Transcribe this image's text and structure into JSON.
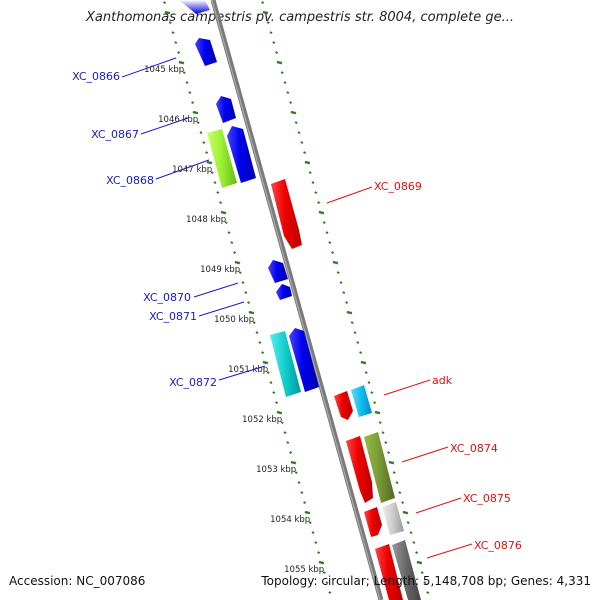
{
  "title": "Xanthomonas campestris pv. campestris str. 8004, complete ge...",
  "footer": {
    "accession": "Accession: NC_007086",
    "summary": "Topology: circular; Length: 5,148,708 bp; Genes: 4,331"
  },
  "colors": {
    "backbone": "#808080",
    "tick": "#2e7d1e",
    "minus_strand_label": "#1a1acc",
    "plus_strand_label": "#dd1111"
  },
  "ruler": [
    "1045 kbp",
    "1046 kbp",
    "1047 kbp",
    "1048 kbp",
    "1049 kbp",
    "1050 kbp",
    "1051 kbp",
    "1052 kbp",
    "1053 kbp",
    "1054 kbp",
    "1055 kbp"
  ],
  "gene_labels": [
    {
      "name": "XC_0866",
      "strand": "minus"
    },
    {
      "name": "XC_0867",
      "strand": "minus"
    },
    {
      "name": "XC_0868",
      "strand": "minus"
    },
    {
      "name": "XC_0869",
      "strand": "plus"
    },
    {
      "name": "XC_0870",
      "strand": "minus"
    },
    {
      "name": "XC_0871",
      "strand": "minus"
    },
    {
      "name": "XC_0872",
      "strand": "minus"
    },
    {
      "name": "adk",
      "strand": "plus"
    },
    {
      "name": "XC_0874",
      "strand": "plus"
    },
    {
      "name": "XC_0875",
      "strand": "plus"
    },
    {
      "name": "XC_0876",
      "strand": "plus"
    }
  ]
}
